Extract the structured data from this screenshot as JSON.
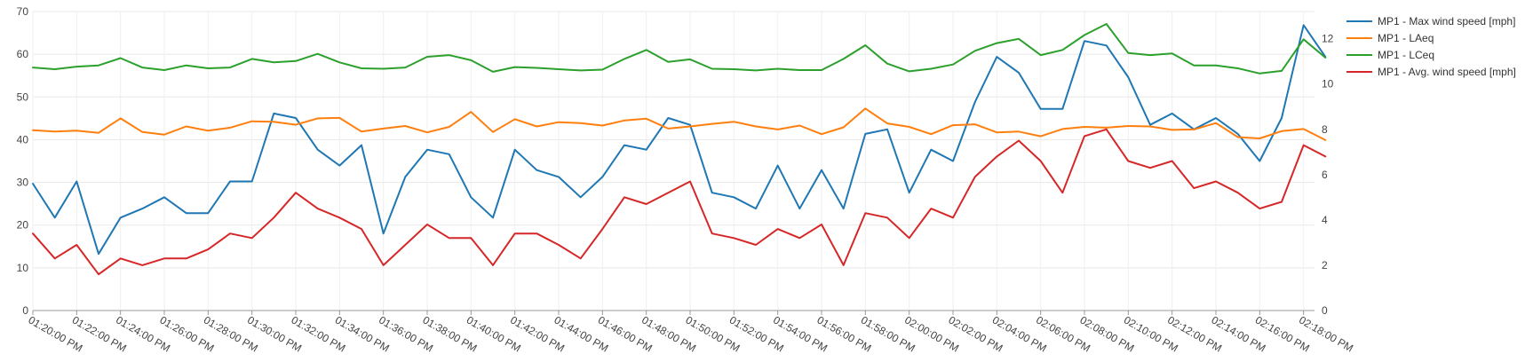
{
  "chart_data": {
    "type": "line",
    "title": "",
    "xlabel": "",
    "ylabel": "",
    "ylabel_right": "",
    "grid": true,
    "legend_position": "top-right",
    "ylim_left": [
      0,
      70
    ],
    "yticks_left": [
      "0",
      "10",
      "20",
      "30",
      "40",
      "50",
      "60",
      "70"
    ],
    "ylim_right": [
      0,
      13.2
    ],
    "yticks_right": [
      "0",
      "2",
      "4",
      "6",
      "8",
      "10",
      "12"
    ],
    "xlim": [
      0,
      58.5
    ],
    "xticks": [
      {
        "x": 0,
        "label": "01:20:00 PM"
      },
      {
        "x": 2,
        "label": "01:22:00 PM"
      },
      {
        "x": 4,
        "label": "01:24:00 PM"
      },
      {
        "x": 6,
        "label": "01:26:00 PM"
      },
      {
        "x": 8,
        "label": "01:28:00 PM"
      },
      {
        "x": 10,
        "label": "01:30:00 PM"
      },
      {
        "x": 12,
        "label": "01:32:00 PM"
      },
      {
        "x": 14,
        "label": "01:34:00 PM"
      },
      {
        "x": 16,
        "label": "01:36:00 PM"
      },
      {
        "x": 18,
        "label": "01:38:00 PM"
      },
      {
        "x": 20,
        "label": "01:40:00 PM"
      },
      {
        "x": 22,
        "label": "01:42:00 PM"
      },
      {
        "x": 24,
        "label": "01:44:00 PM"
      },
      {
        "x": 26,
        "label": "01:46:00 PM"
      },
      {
        "x": 28,
        "label": "01:48:00 PM"
      },
      {
        "x": 30,
        "label": "01:50:00 PM"
      },
      {
        "x": 32,
        "label": "01:52:00 PM"
      },
      {
        "x": 34,
        "label": "01:54:00 PM"
      },
      {
        "x": 36,
        "label": "01:56:00 PM"
      },
      {
        "x": 38,
        "label": "01:58:00 PM"
      },
      {
        "x": 40,
        "label": "02:00:00 PM"
      },
      {
        "x": 42,
        "label": "02:02:00 PM"
      },
      {
        "x": 44,
        "label": "02:04:00 PM"
      },
      {
        "x": 46,
        "label": "02:06:00 PM"
      },
      {
        "x": 48,
        "label": "02:08:00 PM"
      },
      {
        "x": 50,
        "label": "02:10:00 PM"
      },
      {
        "x": 52,
        "label": "02:12:00 PM"
      },
      {
        "x": 54,
        "label": "02:14:00 PM"
      },
      {
        "x": 56,
        "label": "02:16:00 PM"
      },
      {
        "x": 58,
        "label": "02:18:00 PM"
      }
    ],
    "series": [
      {
        "name": "MP1 - Max wind speed [mph]",
        "color": "#1f77b4",
        "axis": "right",
        "values": [
          5.6,
          4.1,
          5.7,
          2.5,
          4.1,
          4.5,
          5.0,
          4.3,
          4.3,
          5.7,
          5.7,
          8.7,
          8.5,
          7.1,
          6.4,
          7.3,
          3.4,
          5.9,
          7.1,
          6.9,
          5.0,
          4.1,
          7.1,
          6.2,
          5.9,
          5.0,
          5.9,
          7.3,
          7.1,
          8.5,
          8.2,
          5.2,
          5.0,
          4.5,
          6.4,
          4.5,
          6.2,
          4.5,
          7.8,
          8.0,
          5.2,
          7.1,
          6.6,
          9.2,
          11.2,
          10.5,
          8.9,
          8.9,
          11.9,
          11.7,
          10.3,
          8.2,
          8.7,
          8.0,
          8.5,
          7.8,
          6.6,
          8.5,
          12.6,
          11.2
        ]
      },
      {
        "name": "MP1 - LAeq",
        "color": "#ff7f0e",
        "axis": "left",
        "values": [
          42.2,
          41.9,
          42.1,
          41.6,
          45.0,
          41.8,
          41.2,
          43.1,
          42.1,
          42.8,
          44.3,
          44.2,
          43.5,
          45.0,
          45.1,
          41.9,
          42.6,
          43.2,
          41.7,
          43.0,
          46.5,
          41.8,
          44.8,
          43.1,
          44.1,
          43.9,
          43.3,
          44.5,
          44.9,
          42.6,
          43.1,
          43.7,
          44.2,
          43.1,
          42.4,
          43.3,
          41.3,
          42.9,
          47.3,
          43.8,
          43.0,
          41.3,
          43.4,
          43.6,
          41.7,
          41.9,
          40.8,
          42.5,
          43.0,
          42.8,
          43.2,
          43.1,
          42.3,
          42.4,
          43.9,
          40.6,
          40.3,
          42.0,
          42.5,
          39.9
        ]
      },
      {
        "name": "MP1 - LCeq",
        "color": "#2ca02c",
        "axis": "left",
        "values": [
          56.9,
          56.5,
          57.1,
          57.4,
          59.1,
          56.9,
          56.3,
          57.4,
          56.7,
          56.9,
          58.9,
          58.1,
          58.4,
          60.1,
          58.1,
          56.7,
          56.6,
          56.9,
          59.4,
          59.8,
          58.6,
          55.9,
          57.0,
          56.8,
          56.5,
          56.2,
          56.4,
          58.9,
          61.0,
          58.2,
          58.8,
          56.6,
          56.5,
          56.2,
          56.6,
          56.3,
          56.3,
          58.9,
          62.1,
          57.8,
          56.0,
          56.6,
          57.6,
          60.8,
          62.6,
          63.6,
          59.8,
          61.0,
          64.5,
          67.1,
          60.3,
          59.8,
          60.2,
          57.4,
          57.4,
          56.7,
          55.5,
          56.1,
          63.5,
          59.2
        ]
      },
      {
        "name": "MP1 - Avg. wind speed [mph]",
        "color": "#d62728",
        "axis": "right",
        "values": [
          3.4,
          2.3,
          2.9,
          1.6,
          2.3,
          2.0,
          2.3,
          2.3,
          2.7,
          3.4,
          3.2,
          4.1,
          5.2,
          4.5,
          4.1,
          3.6,
          2.0,
          2.9,
          3.8,
          3.2,
          3.2,
          2.0,
          3.4,
          3.4,
          2.9,
          2.3,
          3.6,
          5.0,
          4.7,
          5.2,
          5.7,
          3.4,
          3.2,
          2.9,
          3.6,
          3.2,
          3.8,
          2.0,
          4.3,
          4.1,
          3.2,
          4.5,
          4.1,
          5.9,
          6.8,
          7.5,
          6.6,
          5.2,
          7.7,
          8.0,
          6.6,
          6.3,
          6.6,
          5.4,
          5.7,
          5.2,
          4.5,
          4.8,
          7.3,
          6.8
        ]
      }
    ]
  }
}
